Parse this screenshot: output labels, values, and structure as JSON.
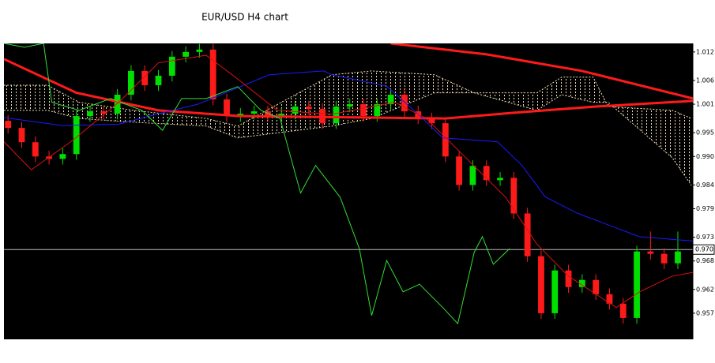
{
  "chart_data": {
    "type": "candlestick",
    "title": "EUR/USD H4 chart",
    "up_color": "#00e000",
    "down_color": "#ff1a1a",
    "xlim": [
      -0.3,
      50.1
    ],
    "ylim": [
      0.9515,
      1.0138
    ],
    "yticks": [
      {
        "value": 1.012,
        "label": "1.012"
      },
      {
        "value": 1.006,
        "label": "1.006"
      },
      {
        "value": 1.001,
        "label": "1.001"
      },
      {
        "value": 0.995,
        "label": "0.995"
      },
      {
        "value": 0.99,
        "label": "0.990"
      },
      {
        "value": 0.984,
        "label": "0.984"
      },
      {
        "value": 0.979,
        "label": "0.979"
      },
      {
        "value": 0.973,
        "label": "0.973"
      },
      {
        "value": 0.968,
        "label": "0.968"
      },
      {
        "value": 0.962,
        "label": "0.962"
      },
      {
        "value": 0.957,
        "label": "0.957"
      }
    ],
    "current_price": {
      "value": 0.9704,
      "label": "0.970"
    },
    "x": [
      0,
      1,
      2,
      3,
      4,
      5,
      6,
      7,
      8,
      9,
      10,
      11,
      12,
      13,
      14,
      15,
      16,
      17,
      18,
      19,
      20,
      21,
      22,
      23,
      24,
      25,
      26,
      27,
      28,
      29,
      30,
      31,
      32,
      33,
      34,
      35,
      36,
      37,
      38,
      39,
      40,
      41,
      42,
      43,
      44,
      45,
      46,
      47,
      48,
      49
    ],
    "open": [
      0.9975,
      0.996,
      0.993,
      0.99,
      0.9895,
      0.9905,
      0.9985,
      0.9995,
      0.999,
      1.003,
      1.008,
      1.005,
      1.007,
      1.011,
      1.012,
      1.0125,
      1.002,
      0.9985,
      0.999,
      0.9995,
      0.9985,
      0.999,
      1.0005,
      1.0,
      0.997,
      1.0005,
      1.001,
      0.9985,
      1.001,
      1.003,
      0.9995,
      0.998,
      0.997,
      0.99,
      0.984,
      0.988,
      0.985,
      0.9855,
      0.978,
      0.969,
      0.957,
      0.966,
      0.9625,
      0.964,
      0.961,
      0.959,
      0.956,
      0.97,
      0.9695,
      0.9675
    ],
    "high": [
      0.9987,
      0.9972,
      0.9942,
      0.9912,
      0.9917,
      0.9997,
      1.0007,
      1.0007,
      1.0042,
      1.0092,
      1.0092,
      1.0082,
      1.0122,
      1.0132,
      1.0137,
      1.0137,
      1.0032,
      1.0002,
      1.0007,
      1.0007,
      1.0002,
      1.0017,
      1.0017,
      1.0012,
      1.0017,
      1.0022,
      1.0022,
      1.0022,
      1.0042,
      1.0042,
      1.0007,
      0.9992,
      0.9982,
      0.9912,
      0.9892,
      0.9892,
      0.9867,
      0.9867,
      0.9792,
      0.9702,
      0.9672,
      0.9672,
      0.9652,
      0.9652,
      0.9622,
      0.9602,
      0.9712,
      0.9742,
      0.9707,
      0.9742
    ],
    "low": [
      0.9948,
      0.9918,
      0.9888,
      0.9883,
      0.9883,
      0.9893,
      0.9973,
      0.9978,
      0.9978,
      1.0018,
      1.0038,
      1.0038,
      1.0058,
      1.0098,
      1.0108,
      1.0008,
      0.9973,
      0.9973,
      0.9978,
      0.9973,
      0.9973,
      0.9978,
      0.9988,
      0.9958,
      0.9958,
      0.9993,
      0.9973,
      0.9973,
      0.9998,
      0.9983,
      0.9968,
      0.9958,
      0.9888,
      0.9828,
      0.9828,
      0.9838,
      0.9838,
      0.9768,
      0.9678,
      0.9558,
      0.9558,
      0.9613,
      0.9613,
      0.9598,
      0.9578,
      0.9548,
      0.9548,
      0.9683,
      0.9663,
      0.9663
    ],
    "close": [
      0.996,
      0.993,
      0.99,
      0.9895,
      0.9905,
      0.9985,
      0.9995,
      0.999,
      1.003,
      1.008,
      1.005,
      1.007,
      1.011,
      1.012,
      1.0125,
      1.002,
      0.9985,
      0.999,
      0.9995,
      0.9985,
      0.999,
      1.0005,
      1.0,
      0.997,
      1.0005,
      1.001,
      0.9985,
      1.001,
      1.003,
      0.9995,
      0.998,
      0.997,
      0.99,
      0.984,
      0.988,
      0.985,
      0.9855,
      0.978,
      0.969,
      0.957,
      0.966,
      0.9625,
      0.964,
      0.961,
      0.959,
      0.956,
      0.97,
      0.9695,
      0.9675,
      0.97
    ],
    "cloud": {
      "color": "#f0dcb4",
      "x": [
        -0.3,
        2.9,
        5.2,
        9.2,
        14.5,
        16.8,
        23.7,
        26.6,
        31.2,
        34.1,
        38.7,
        40.5,
        42.8,
        43.9,
        48.6,
        50
      ],
      "span_a": [
        1.005,
        1.005,
        1.0014,
        0.9997,
        0.998,
        0.9964,
        1.0072,
        1.008,
        1.0072,
        1.0034,
        1.0034,
        1.0067,
        1.0067,
        1.0005,
        0.9997,
        0.998
      ],
      "span_b": [
        0.9997,
        0.9997,
        0.998,
        0.9972,
        0.9964,
        0.9939,
        0.9964,
        0.998,
        1.0034,
        1.0034,
        0.9997,
        1.003,
        1.0014,
        1.0014,
        0.9897,
        0.9839
      ]
    },
    "lines": [
      {
        "color": "#ff1a1a",
        "width": 3,
        "x": [
          -0.3,
          5,
          11,
          17,
          26,
          32,
          37,
          43,
          50.1
        ],
        "values": [
          1.0105,
          1.0034,
          0.9997,
          0.9985,
          0.9982,
          0.998,
          0.9992,
          1.0005,
          1.0017
        ]
      },
      {
        "color": "#ff1a1a",
        "width": 3,
        "x": [
          28,
          35,
          42,
          50.1
        ],
        "values": [
          1.0138,
          1.0115,
          1.008,
          1.0022
        ]
      },
      {
        "color": "#1a1aff",
        "width": 1,
        "x": [
          -0.3,
          1.7,
          4,
          8.1,
          11,
          13.9,
          19.1,
          23.1,
          23.7,
          27.7,
          30,
          31.8,
          35.8,
          37.6,
          39.3,
          41.6,
          43.9,
          46.2,
          50.1
        ],
        "values": [
          0.9982,
          0.9974,
          0.9965,
          0.9968,
          0.999,
          1.001,
          1.0072,
          1.008,
          1.0072,
          1.0048,
          0.9989,
          0.9939,
          0.9931,
          0.9881,
          0.9815,
          0.9781,
          0.9756,
          0.9731,
          0.9722
        ]
      },
      {
        "color": "#33dd33",
        "width": 1,
        "x": [
          -0.3,
          1.2,
          2.6,
          3.2,
          5.2,
          7.5,
          9.8,
          11.3,
          12.7,
          14.5,
          16.8,
          18.5,
          19.9,
          21.4,
          22.5,
          24.3,
          25.7,
          26.6,
          27.7,
          28.9,
          30.1,
          31.8,
          32.9,
          34.1,
          34.7,
          35.5,
          36.7
        ],
        "values": [
          1.0138,
          1.013,
          1.0138,
          1.0014,
          0.9997,
          1.0022,
          0.9997,
          0.9955,
          1.0022,
          1.0022,
          1.0047,
          0.9997,
          0.998,
          0.9823,
          0.9881,
          0.9814,
          0.9706,
          0.9565,
          0.9681,
          0.9615,
          0.9631,
          0.9582,
          0.9548,
          0.9698,
          0.9731,
          0.9673,
          0.9706
        ]
      },
      {
        "color": "#dd1111",
        "width": 1,
        "x": [
          -0.3,
          1.7,
          4.6,
          8.1,
          11,
          14.5,
          16.8,
          19.7,
          23.7,
          28.3,
          30.6,
          32.9,
          36.4,
          38.7,
          41,
          44.5,
          46.2,
          48.6,
          50.1
        ],
        "values": [
          0.9931,
          0.9872,
          0.9931,
          1.0014,
          1.0097,
          1.0113,
          1.0063,
          0.9997,
          0.9989,
          1.0014,
          0.998,
          0.9914,
          0.9814,
          0.9715,
          0.9648,
          0.9582,
          0.9615,
          0.9648,
          0.9656
        ]
      }
    ]
  }
}
